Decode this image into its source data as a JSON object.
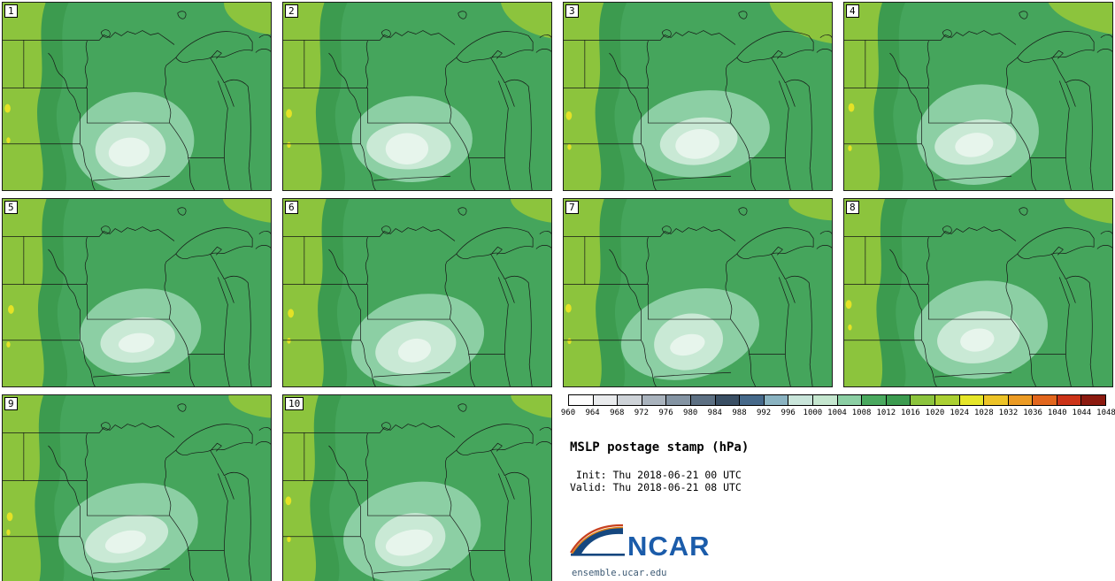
{
  "title": "MSLP postage stamp (hPa)",
  "init_label": " Init: Thu 2018-06-21 00 UTC",
  "valid_label": "Valid: Thu 2018-06-21 08 UTC",
  "logo_text": "NCAR",
  "footer_url": "ensemble.ucar.edu",
  "panels": [
    {
      "id": "1"
    },
    {
      "id": "2"
    },
    {
      "id": "3"
    },
    {
      "id": "4"
    },
    {
      "id": "5"
    },
    {
      "id": "6"
    },
    {
      "id": "7"
    },
    {
      "id": "8"
    },
    {
      "id": "9"
    },
    {
      "id": "10"
    }
  ],
  "map_colors": {
    "green_mid": "#45a55c",
    "green_dark": "#3c9b4f",
    "green_light": "#8ccfa4",
    "mint": "#c9e9d5",
    "core": "#e7f5ec",
    "yellow_green": "#8cc43d",
    "yellow_spot": "#e4e226",
    "border": "#161616"
  },
  "chart_data": {
    "type": "heatmap",
    "title": "MSLP postage stamp (hPa)",
    "variable": "Mean sea level pressure",
    "unit": "hPa",
    "init_time": "Thu 2018-06-21 00 UTC",
    "valid_time": "Thu 2018-06-21 08 UTC",
    "ensemble_members": [
      "1",
      "2",
      "3",
      "4",
      "5",
      "6",
      "7",
      "8",
      "9",
      "10"
    ],
    "layout": "10 postage-stamp maps in a 4-column grid; horizontal colorbar, title, times and NCAR logo in the lower-right quadrant",
    "region": "Upper Midwest United States and western Great Lakes (Dakotas, Minnesota, Iowa, Wisconsin, Michigan, Lakes Superior and Michigan)",
    "depicted_pattern": "All 10 members show a broad 1008-1012 hPa field with a weak low of ~1000-1004 hPa centered near Iowa / southern Minnesota and a 1016-1024 hPa high-pressure band along the western edge",
    "colorbar": {
      "position": "horizontal, lower-right",
      "ticks": [
        960,
        964,
        968,
        972,
        976,
        980,
        984,
        988,
        992,
        996,
        1000,
        1004,
        1008,
        1012,
        1016,
        1020,
        1024,
        1028,
        1032,
        1036,
        1040,
        1044,
        1048
      ],
      "colors": [
        "#fdfdfd",
        "#e9ebed",
        "#ced3d8",
        "#a9b3bd",
        "#8494a3",
        "#5d7083",
        "#3a4f64",
        "#46698a",
        "#8ab3c1",
        "#c9e5da",
        "#c5e7cf",
        "#8ccfa4",
        "#4aa95f",
        "#3c9b4f",
        "#8cc43d",
        "#abd032",
        "#e6e629",
        "#edc327",
        "#ec9b24",
        "#e2661d",
        "#cc3318",
        "#8c1a0f"
      ]
    }
  }
}
